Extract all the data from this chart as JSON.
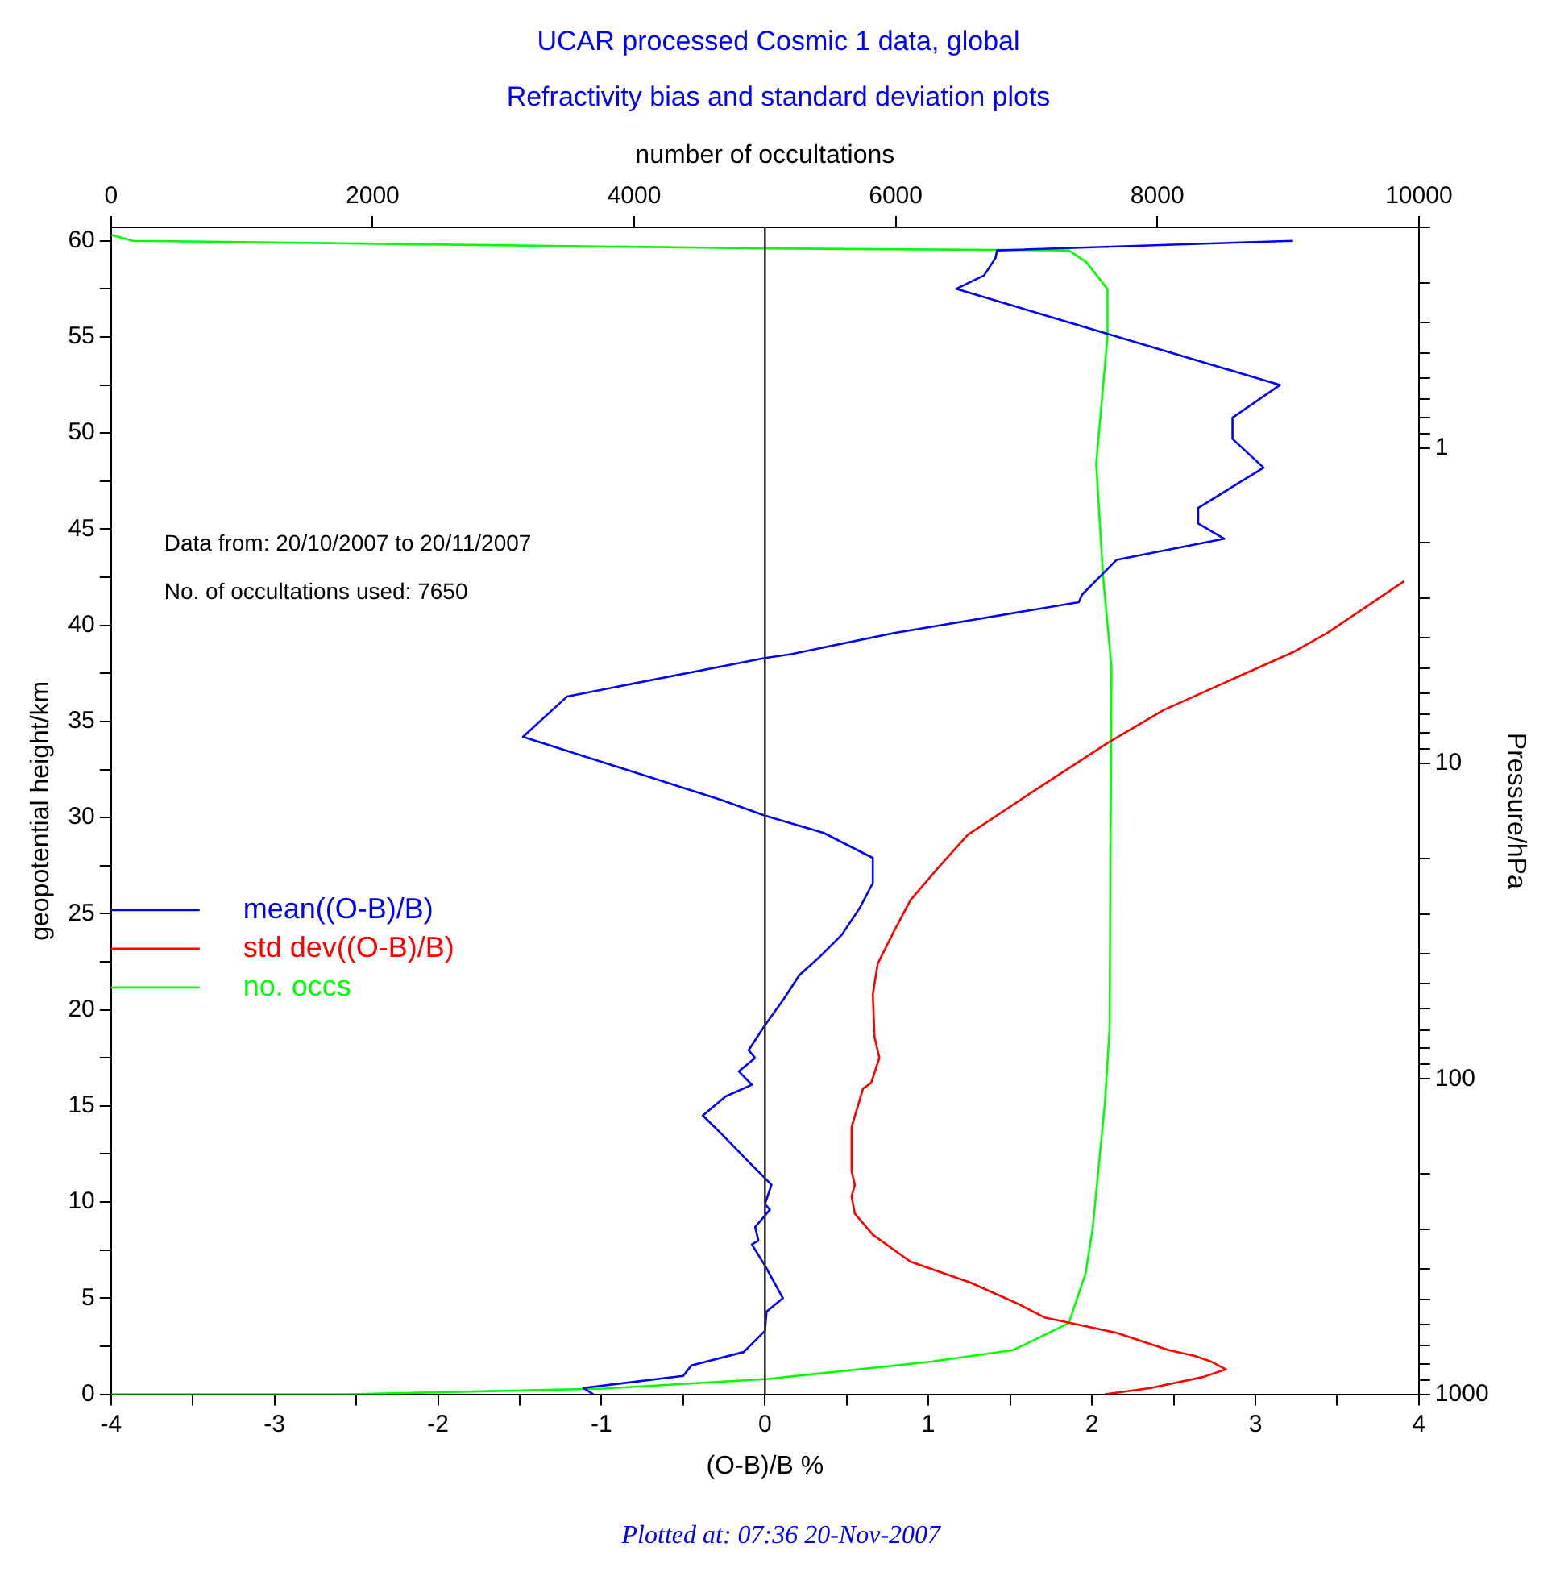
{
  "chart_data": {
    "type": "line",
    "title": "UCAR processed Cosmic 1 data, global",
    "subtitle": "Refractivity bias and standard deviation plots",
    "xlabel": "(O-B)/B %",
    "x2label": "number of occultations",
    "ylabel": "geopotential height/km",
    "y2label": "Pressure/hPa",
    "annotations": [
      "Data from: 20/10/2007 to 20/11/2007",
      "No. of occultations used: 7650",
      "Plotted at: 07:36 20-Nov-2007"
    ],
    "series": [
      {
        "name": "mean((O-B)/B)",
        "color": "#0000ff",
        "x": [
          3.23,
          1.42,
          1.41,
          1.34,
          1.17,
          3.15,
          2.86,
          2.86,
          3.05,
          2.65,
          2.65,
          2.81,
          2.15,
          1.94,
          1.92,
          0.79,
          0.16,
          0,
          -1.21,
          -1.48,
          -0.26,
          0,
          0.36,
          0.66,
          0.66,
          0.58,
          0.47,
          0.34,
          0.21,
          0.11,
          0,
          -0.1,
          -0.06,
          -0.16,
          -0.08,
          -0.24,
          -0.38,
          -0.26,
          -0.1,
          0.04,
          0,
          0.03,
          -0.06,
          -0.04,
          -0.08,
          0,
          0.11,
          0.01,
          0,
          -0.13,
          -0.45,
          -0.5,
          -1.11,
          -1.05
        ],
        "values": [
          60,
          59.5,
          59.1,
          58.2,
          57.5,
          52.5,
          50.8,
          49.7,
          48.2,
          46.1,
          45.3,
          44.5,
          43.4,
          41.6,
          41.2,
          39.6,
          38.5,
          38.3,
          36.3,
          34.2,
          30.9,
          30.1,
          29.2,
          27.9,
          26.6,
          25.3,
          23.9,
          22.8,
          21.8,
          20.5,
          19.2,
          17.9,
          17.5,
          16.8,
          16.1,
          15.5,
          14.5,
          13.5,
          12.1,
          10.9,
          9.9,
          9.6,
          8.7,
          8,
          7.8,
          6.7,
          5,
          4.3,
          3.3,
          2.2,
          1.5,
          0.96,
          0.33,
          0
        ]
      },
      {
        "name": "std dev((O-B)/B)",
        "color": "#ff0000",
        "x": [
          3.91,
          3.44,
          3.23,
          2.44,
          2.1,
          1.63,
          1.24,
          1.05,
          0.89,
          0.79,
          0.69,
          0.66,
          0.67,
          0.7,
          0.65,
          0.6,
          0.53,
          0.53,
          0.55,
          0.53,
          0.55,
          0.66,
          0.89,
          1.26,
          1.55,
          1.71,
          2.15,
          2.47,
          2.63,
          2.73,
          2.82,
          2.68,
          2.36,
          2.08
        ],
        "values": [
          42.3,
          39.6,
          38.6,
          35.6,
          33.9,
          31.3,
          29.1,
          27.3,
          25.7,
          24.1,
          22.4,
          20.8,
          18.6,
          17.5,
          16.2,
          15.9,
          13.9,
          11.6,
          10.9,
          10.3,
          9.4,
          8.3,
          6.9,
          5.8,
          4.7,
          4,
          3.2,
          2.3,
          2,
          1.7,
          1.3,
          0.9,
          0.33,
          0
        ]
      },
      {
        "name": "no. occs",
        "color": "#00ff00",
        "axis": "x2",
        "x": [
          5,
          169,
          5025,
          7323,
          7455,
          7619,
          7619,
          7533,
          7586,
          7650,
          7635,
          7600,
          7507,
          7452,
          7323,
          6897,
          6274,
          5025,
          3774,
          1810,
          5
        ],
        "values": [
          60.3,
          60,
          59.6,
          59.5,
          58.9,
          57.5,
          55,
          48.4,
          42.5,
          37.8,
          19,
          15.2,
          8.7,
          6.3,
          3.7,
          2.3,
          1.7,
          0.8,
          0.3,
          0,
          0
        ]
      }
    ],
    "xlim": [
      -4,
      4
    ],
    "xticks": [
      -4,
      {
        "value": -3.5,
        "label": null
      },
      -3,
      {
        "value": -2.5,
        "label": null
      },
      -2,
      {
        "value": -1.5,
        "label": null
      },
      -1,
      {
        "value": -0.5,
        "label": null
      },
      0,
      {
        "value": 0.5,
        "label": null
      },
      1,
      {
        "value": 1.5,
        "label": null
      },
      2,
      {
        "value": 2.5,
        "label": null
      },
      3,
      {
        "value": 3.5,
        "label": null
      },
      4
    ],
    "x2lim": [
      0,
      10000
    ],
    "x2ticks": [
      0,
      2000,
      4000,
      6000,
      8000,
      10000
    ],
    "ylim": [
      0,
      60.7
    ],
    "yticks": [
      0,
      {
        "value": 2.5,
        "label": null
      },
      5,
      {
        "value": 7.5,
        "label": null
      },
      10,
      {
        "value": 12.5,
        "label": null
      },
      15,
      {
        "value": 17.5,
        "label": null
      },
      20,
      {
        "value": 22.5,
        "label": null
      },
      25,
      {
        "value": 27.5,
        "label": null
      },
      30,
      {
        "value": 32.5,
        "label": null
      },
      35,
      {
        "value": 37.5,
        "label": null
      },
      40,
      {
        "value": 42.5,
        "label": null
      },
      45,
      {
        "value": 47.5,
        "label": null
      },
      50,
      {
        "value": 52.5,
        "label": null
      },
      55,
      {
        "value": 57.5,
        "label": null
      },
      60
    ],
    "y2lim": [
      1000,
      0.2
    ],
    "y2ticks": [
      1000,
      {
        "value": 900,
        "label": null
      },
      {
        "value": 800,
        "label": null
      },
      {
        "value": 700,
        "label": null
      },
      {
        "value": 600,
        "label": null
      },
      {
        "value": 500,
        "label": null
      },
      {
        "value": 400,
        "label": null
      },
      {
        "value": 300,
        "label": null
      },
      {
        "value": 200,
        "label": null
      },
      100,
      {
        "value": 90,
        "label": null
      },
      {
        "value": 80,
        "label": null
      },
      {
        "value": 70,
        "label": null
      },
      {
        "value": 60,
        "label": null
      },
      {
        "value": 50,
        "label": null
      },
      {
        "value": 40,
        "label": null
      },
      {
        "value": 30,
        "label": null
      },
      {
        "value": 20,
        "label": null
      },
      10,
      {
        "value": 9,
        "label": null
      },
      {
        "value": 8,
        "label": null
      },
      {
        "value": 7,
        "label": null
      },
      {
        "value": 6,
        "label": null
      },
      {
        "value": 5,
        "label": null
      },
      {
        "value": 4,
        "label": null
      },
      {
        "value": 3,
        "label": null
      },
      {
        "value": 2,
        "label": null
      },
      1,
      {
        "value": 0.9,
        "label": null
      },
      {
        "value": 0.8,
        "label": null
      },
      {
        "value": 0.7,
        "label": null
      },
      {
        "value": 0.6,
        "label": null
      },
      {
        "value": 0.5,
        "label": null
      },
      {
        "value": 0.4,
        "label": null
      },
      {
        "value": 0.3,
        "label": null
      },
      {
        "value": 0.2,
        "label": null
      }
    ],
    "log": "y2",
    "grid": false,
    "legend": "left",
    "marker": "none",
    "line_style": "solid",
    "ref_lines": [
      {
        "axis": "x",
        "value": 0,
        "color": "#333333"
      }
    ]
  }
}
